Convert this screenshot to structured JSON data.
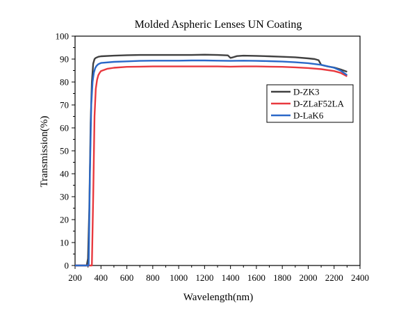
{
  "chart_data": {
    "type": "line",
    "title": "Molded Aspheric Lenses UN Coating",
    "xlabel": "Wavelength(nm)",
    "ylabel": "Transmission(%)",
    "xlim": [
      200,
      2400
    ],
    "ylim": [
      0,
      100
    ],
    "xticks": [
      "200",
      "400",
      "600",
      "800",
      "1000",
      "1200",
      "1400",
      "1600",
      "1800",
      "2000",
      "2200",
      "2400"
    ],
    "yticks": [
      "0",
      "10",
      "20",
      "30",
      "40",
      "50",
      "60",
      "70",
      "80",
      "90",
      "100"
    ],
    "legend_position": "right",
    "series": [
      {
        "name": "D-ZK3",
        "color": "#404040",
        "x": [
          200,
          290,
          300,
          310,
          320,
          330,
          340,
          350,
          360,
          380,
          400,
          500,
          600,
          700,
          800,
          900,
          1000,
          1100,
          1200,
          1300,
          1380,
          1400,
          1420,
          1450,
          1500,
          1600,
          1700,
          1800,
          1900,
          2000,
          2050,
          2080,
          2100,
          2150,
          2200,
          2250,
          2300
        ],
        "y": [
          0,
          0,
          3,
          25,
          62,
          80,
          88,
          90,
          90.5,
          91,
          91.2,
          91.5,
          91.7,
          91.8,
          91.8,
          91.8,
          91.8,
          91.8,
          91.9,
          91.8,
          91.6,
          90.5,
          90.8,
          91.3,
          91.5,
          91.4,
          91.2,
          91.0,
          90.8,
          90.3,
          90.0,
          89.5,
          87.5,
          86.8,
          86.3,
          85.5,
          84.5
        ]
      },
      {
        "name": "D-ZLaF52LA",
        "color": "#e8393e",
        "x": [
          200,
          330,
          340,
          350,
          360,
          370,
          380,
          390,
          400,
          450,
          500,
          600,
          700,
          800,
          900,
          1000,
          1100,
          1200,
          1300,
          1400,
          1500,
          1600,
          1700,
          1800,
          1900,
          2000,
          2100,
          2200,
          2250,
          2300
        ],
        "y": [
          0,
          0,
          30,
          65,
          77,
          81,
          83,
          84,
          84.8,
          85.8,
          86.2,
          86.6,
          86.7,
          86.8,
          86.8,
          86.8,
          86.8,
          86.8,
          86.8,
          86.7,
          86.8,
          86.8,
          86.7,
          86.6,
          86.4,
          86.1,
          85.6,
          84.8,
          84.0,
          82.5
        ]
      },
      {
        "name": "D-LaK6",
        "color": "#2a68c8",
        "x": [
          200,
          305,
          315,
          325,
          335,
          345,
          355,
          365,
          380,
          400,
          500,
          600,
          700,
          800,
          900,
          1000,
          1100,
          1200,
          1300,
          1400,
          1500,
          1600,
          1700,
          1800,
          1900,
          2000,
          2100,
          2200,
          2250,
          2300
        ],
        "y": [
          0,
          0,
          40,
          70,
          80,
          84,
          86,
          87,
          87.8,
          88.3,
          88.8,
          89.0,
          89.2,
          89.3,
          89.3,
          89.3,
          89.4,
          89.4,
          89.3,
          89.2,
          89.3,
          89.2,
          89.1,
          88.9,
          88.6,
          88.2,
          87.5,
          86.2,
          85.0,
          83.0
        ]
      }
    ]
  }
}
